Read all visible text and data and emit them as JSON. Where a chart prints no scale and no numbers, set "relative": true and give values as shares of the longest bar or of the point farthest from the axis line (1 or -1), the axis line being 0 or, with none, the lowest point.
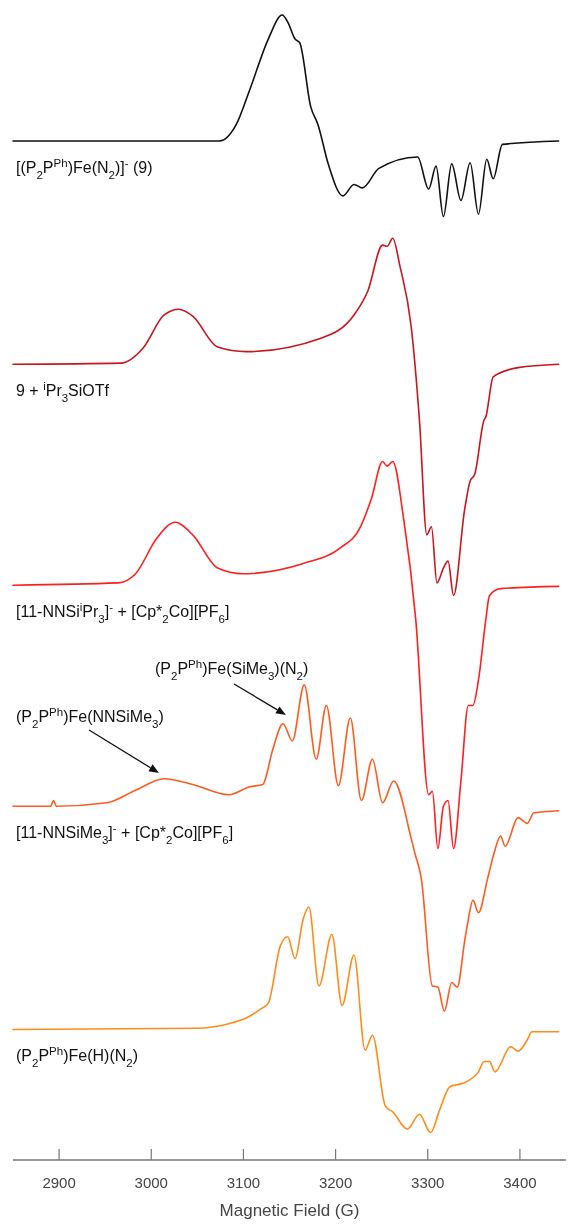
{
  "chart_data": {
    "type": "line",
    "xlabel": "Magnetic Field (G)",
    "relative": true,
    "xlim": [
      2850,
      3450
    ],
    "xticks": [
      2900,
      3000,
      3100,
      3200,
      3300,
      3400
    ],
    "series": [
      {
        "name": "[(P$_{2}$P$^{Ph}$)Fe(N$_{2}$)]$^{-}$ (9)",
        "color": "#111111",
        "x": [
          2850,
          3074,
          3092,
          3107,
          3127,
          3142,
          3148,
          3156,
          3161,
          3173,
          3181,
          3192,
          3208,
          3220,
          3229,
          3247,
          3289,
          3301,
          3309,
          3317,
          3326,
          3336,
          3346,
          3355,
          3364,
          3371,
          3381,
          3442
        ],
        "values": [
          0.89,
          0.89,
          0.904,
          0.935,
          0.979,
          1.0,
          0.994,
          0.979,
          0.976,
          0.92,
          0.904,
          0.87,
          0.842,
          0.852,
          0.849,
          0.866,
          0.876,
          0.848,
          0.868,
          0.824,
          0.87,
          0.838,
          0.871,
          0.826,
          0.874,
          0.857,
          0.887,
          0.89
        ]
      },
      {
        "name": "9 + $^{i}$Pr$_{3}$SiOTf",
        "color": "#c8161d",
        "x": [
          2850,
          2967,
          2991,
          3014,
          3030,
          3045,
          3072,
          3103,
          3185,
          3220,
          3235,
          3251,
          3256,
          3262,
          3270,
          3282,
          3291,
          3299,
          3304,
          3310,
          3317,
          3322,
          3328,
          3340,
          3346,
          3351,
          3361,
          3363,
          3371,
          3398,
          3442
        ],
        "values": [
          0.695,
          0.696,
          0.709,
          0.738,
          0.743,
          0.737,
          0.71,
          0.706,
          0.718,
          0.738,
          0.759,
          0.799,
          0.798,
          0.805,
          0.78,
          0.728,
          0.646,
          0.546,
          0.553,
          0.504,
          0.517,
          0.523,
          0.493,
          0.568,
          0.593,
          0.599,
          0.646,
          0.649,
          0.684,
          0.692,
          0.695
        ]
      },
      {
        "name": "[11-NNSi$^{i}$Pr$_{3}$]$^{-}$ + [Cp*$_{2}$Co][PF$_{6}$]",
        "color": "#ff1f1f",
        "x": [
          2850,
          2964,
          2983,
          3006,
          3026,
          3045,
          3072,
          3099,
          3165,
          3204,
          3227,
          3239,
          3251,
          3256,
          3262,
          3274,
          3287,
          3301,
          3305,
          3311,
          3317,
          3322,
          3328,
          3336,
          3344,
          3349,
          3355,
          3363,
          3367,
          3379,
          3442
        ],
        "values": [
          0.502,
          0.504,
          0.512,
          0.543,
          0.557,
          0.546,
          0.517,
          0.512,
          0.521,
          0.534,
          0.553,
          0.578,
          0.61,
          0.606,
          0.61,
          0.559,
          0.472,
          0.319,
          0.322,
          0.272,
          0.309,
          0.314,
          0.272,
          0.331,
          0.397,
          0.397,
          0.419,
          0.472,
          0.493,
          0.499,
          0.501
        ]
      },
      {
        "name": "[11-NNSiMe$_{3}$]$^{-}$  + [Cp*$_{2}$Co][PF$_{6}$]",
        "color": "#ff5a1f",
        "x": [
          2850,
          2891,
          2894,
          2897,
          2952,
          2983,
          3014,
          3045,
          3084,
          3107,
          3121,
          3132,
          3143,
          3153,
          3166,
          3179,
          3190,
          3203,
          3216,
          3228,
          3240,
          3251,
          3263,
          3282,
          3286,
          3293,
          3305,
          3311,
          3318,
          3326,
          3332,
          3340,
          3344,
          3349,
          3355,
          3365,
          3373,
          3379,
          3384,
          3398,
          3408,
          3415,
          3442
        ],
        "values": [
          0.309,
          0.309,
          0.314,
          0.309,
          0.312,
          0.323,
          0.333,
          0.328,
          0.319,
          0.326,
          0.328,
          0.359,
          0.381,
          0.366,
          0.415,
          0.35,
          0.397,
          0.327,
          0.386,
          0.314,
          0.35,
          0.312,
          0.331,
          0.281,
          0.268,
          0.246,
          0.152,
          0.151,
          0.13,
          0.155,
          0.151,
          0.191,
          0.21,
          0.227,
          0.216,
          0.246,
          0.271,
          0.283,
          0.274,
          0.299,
          0.294,
          0.303,
          0.305
        ]
      },
      {
        "name": "(P$_{2}$P$^{Ph}$)Fe(H)(N$_{2}$)",
        "color": "#ff8c1a",
        "x": [
          2850,
          3049,
          3084,
          3103,
          3119,
          3127,
          3140,
          3148,
          3156,
          3165,
          3171,
          3182,
          3196,
          3207,
          3220,
          3232,
          3240,
          3254,
          3262,
          3278,
          3291,
          3303,
          3313,
          3324,
          3338,
          3355,
          3361,
          3367,
          3373,
          3390,
          3398,
          3408,
          3413,
          3442
        ],
        "values": [
          0.114,
          0.115,
          0.119,
          0.124,
          0.132,
          0.137,
          0.187,
          0.195,
          0.176,
          0.211,
          0.221,
          0.152,
          0.197,
          0.135,
          0.179,
          0.096,
          0.109,
          0.047,
          0.042,
          0.027,
          0.04,
          0.024,
          0.044,
          0.064,
          0.067,
          0.077,
          0.086,
          0.086,
          0.077,
          0.099,
          0.095,
          0.105,
          0.112,
          0.112
        ]
      }
    ],
    "annotations": [
      "(P$_{2}$P$^{Ph}$)Fe(NNSiMe$_{3}$)",
      "(P$_{2}$P$^{Ph}$)Fe(SiMe$_{3}$)(N$_{2}$)"
    ]
  }
}
